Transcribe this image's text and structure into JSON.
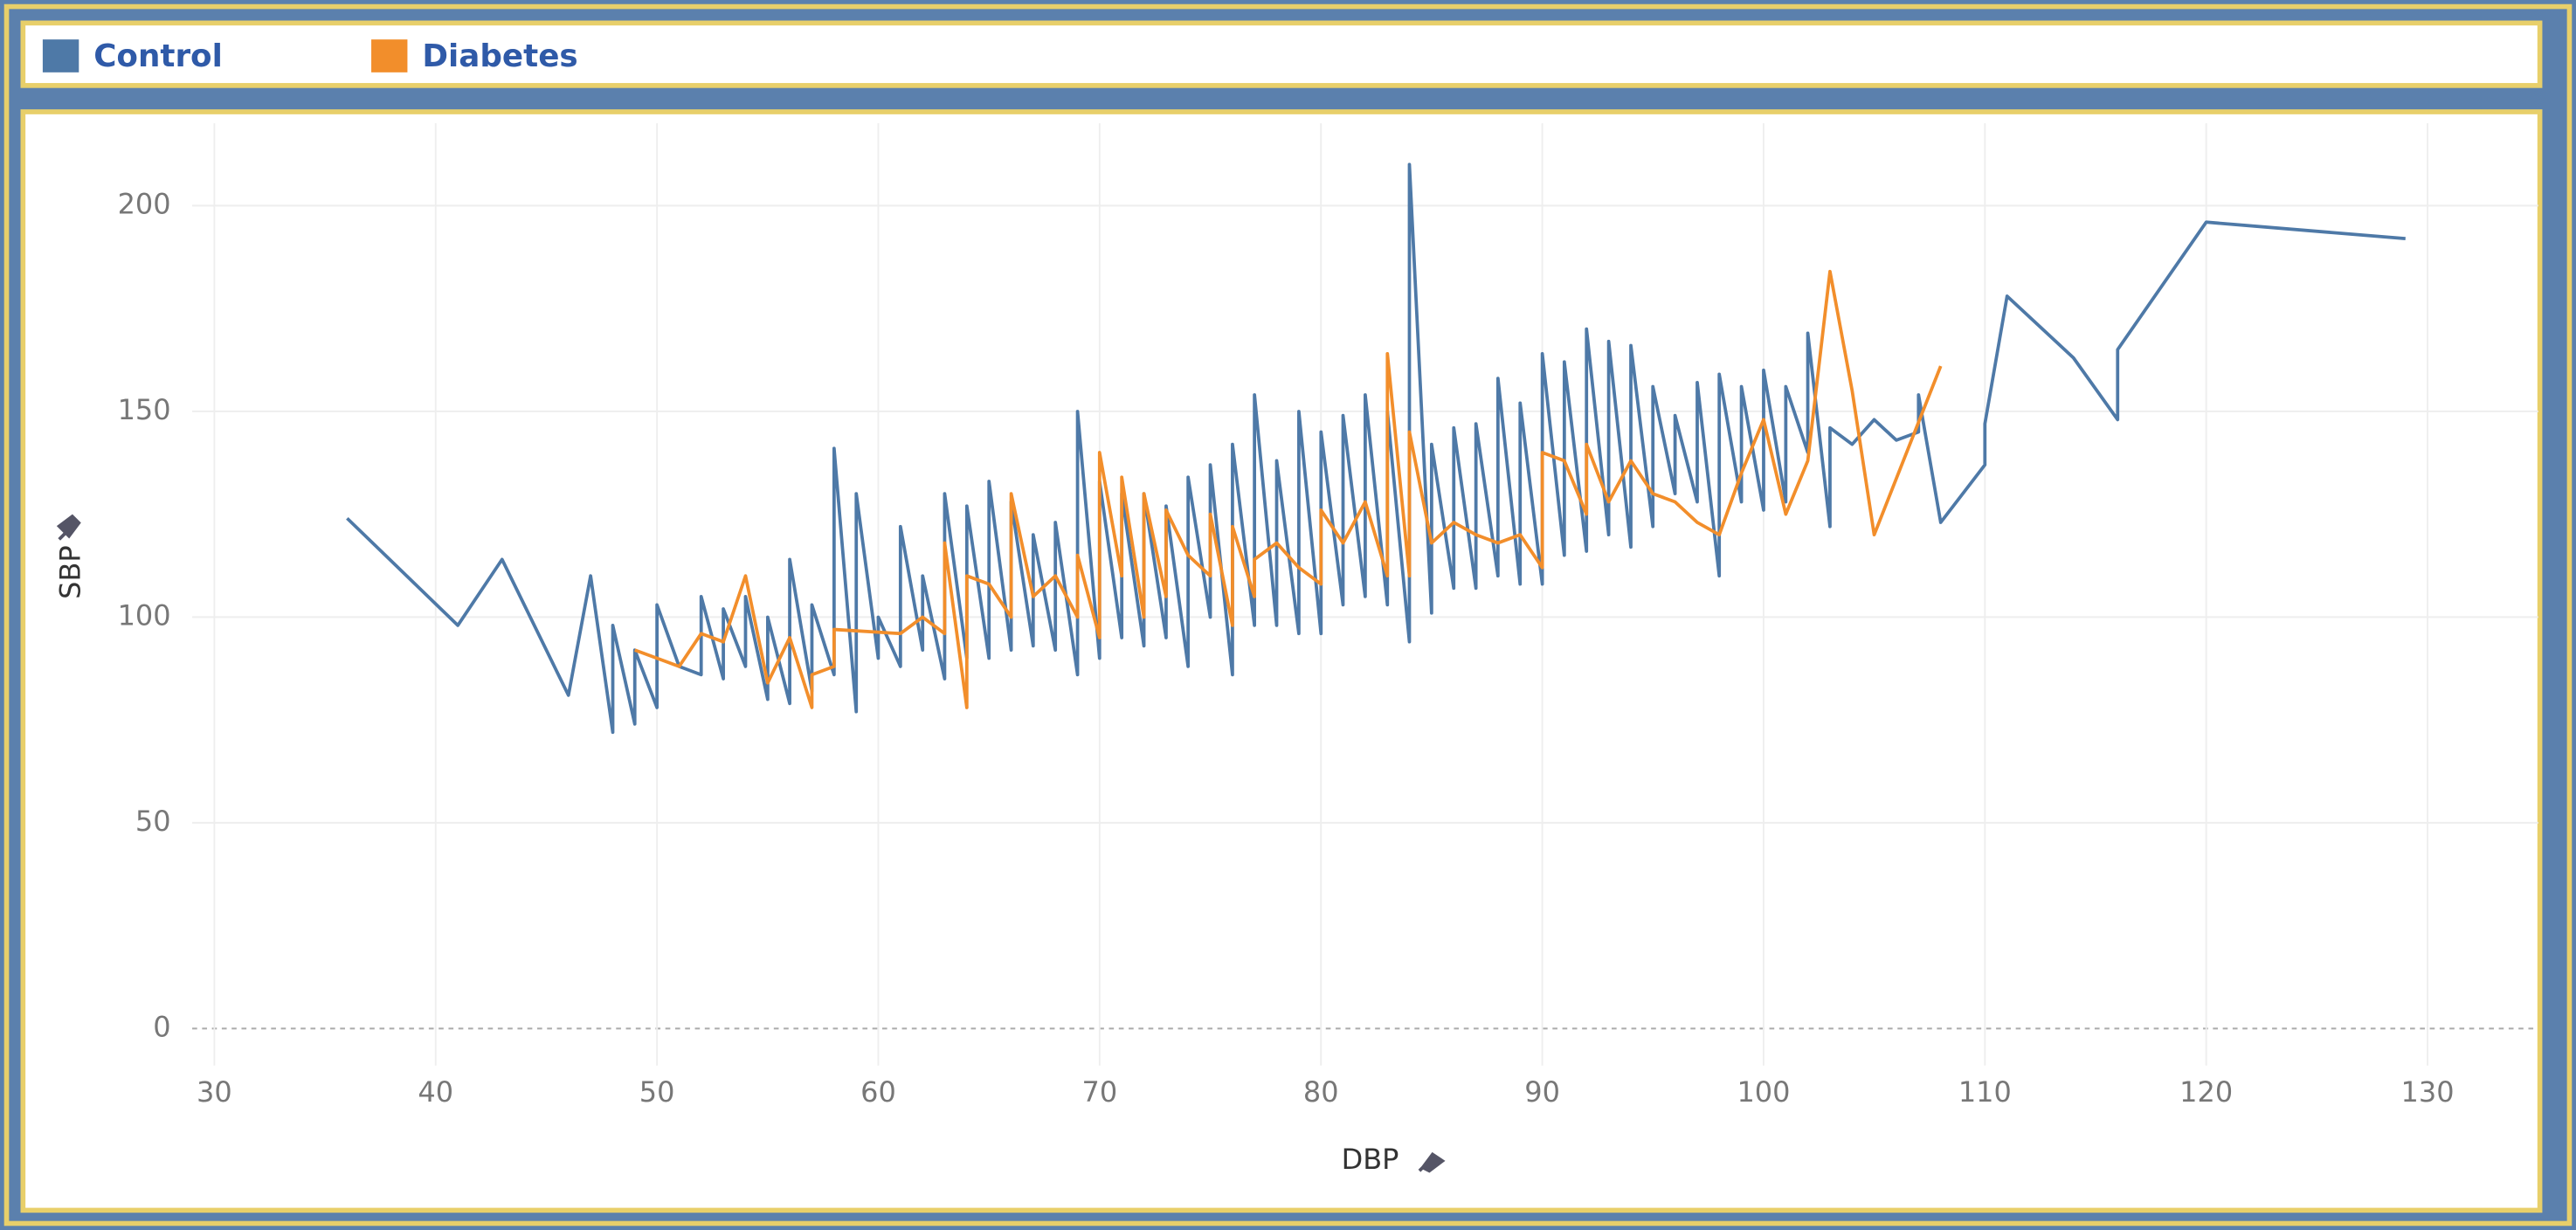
{
  "chart_data": {
    "type": "line",
    "xlabel": "DBP",
    "ylabel": "SBP",
    "xlim": [
      29,
      135
    ],
    "ylim": [
      -9,
      220
    ],
    "xticks": [
      30,
      40,
      50,
      60,
      70,
      80,
      90,
      100,
      110,
      120,
      130
    ],
    "yticks": [
      0,
      50,
      100,
      150,
      200
    ],
    "grid": true,
    "series": [
      {
        "name": "Control",
        "color": "#4e79a7",
        "x": [
          36,
          41,
          43,
          46,
          47,
          48,
          48,
          49,
          49,
          50,
          50,
          51,
          52,
          52,
          53,
          53,
          54,
          54,
          55,
          55,
          56,
          56,
          57,
          57,
          58,
          58,
          59,
          59,
          60,
          60,
          61,
          61,
          62,
          62,
          63,
          63,
          64,
          64,
          65,
          65,
          66,
          66,
          67,
          67,
          68,
          68,
          69,
          69,
          70,
          70,
          71,
          71,
          72,
          72,
          73,
          73,
          74,
          74,
          75,
          75,
          76,
          76,
          77,
          77,
          78,
          78,
          79,
          79,
          80,
          80,
          81,
          81,
          82,
          82,
          83,
          83,
          84,
          84,
          85,
          85,
          86,
          86,
          87,
          87,
          88,
          88,
          89,
          89,
          90,
          90,
          91,
          91,
          92,
          92,
          93,
          93,
          94,
          94,
          95,
          95,
          96,
          96,
          97,
          97,
          98,
          98,
          99,
          99,
          100,
          100,
          101,
          101,
          102,
          102,
          103,
          103,
          104,
          105,
          106,
          107,
          107,
          108,
          110,
          110,
          111,
          114,
          116,
          116,
          120,
          129
        ],
        "values": [
          124,
          98,
          114,
          81,
          110,
          72,
          98,
          74,
          92,
          78,
          103,
          88,
          86,
          105,
          85,
          102,
          88,
          105,
          80,
          100,
          79,
          114,
          82,
          103,
          86,
          141,
          77,
          130,
          90,
          100,
          88,
          122,
          92,
          110,
          85,
          130,
          90,
          127,
          90,
          133,
          92,
          128,
          93,
          120,
          92,
          123,
          86,
          150,
          90,
          133,
          95,
          130,
          93,
          130,
          95,
          127,
          88,
          134,
          100,
          137,
          86,
          142,
          98,
          154,
          98,
          138,
          96,
          150,
          96,
          145,
          103,
          149,
          105,
          154,
          103,
          150,
          94,
          210,
          101,
          142,
          107,
          146,
          107,
          147,
          110,
          158,
          108,
          152,
          108,
          164,
          115,
          162,
          116,
          170,
          120,
          167,
          117,
          166,
          122,
          156,
          130,
          149,
          128,
          157,
          110,
          159,
          128,
          156,
          126,
          160,
          128,
          156,
          140,
          169,
          122,
          146,
          142,
          148,
          143,
          145,
          154,
          123,
          137,
          147,
          178,
          163,
          148,
          165,
          196,
          192
        ]
      },
      {
        "name": "Diabetes",
        "color": "#f28e2b",
        "x": [
          49,
          51,
          52,
          53,
          54,
          55,
          56,
          57,
          57,
          58,
          58,
          61,
          62,
          63,
          63,
          64,
          64,
          65,
          66,
          66,
          67,
          68,
          69,
          69,
          70,
          70,
          71,
          71,
          72,
          72,
          73,
          73,
          74,
          75,
          75,
          76,
          76,
          77,
          77,
          78,
          79,
          80,
          80,
          81,
          82,
          83,
          83,
          84,
          84,
          85,
          86,
          87,
          88,
          89,
          90,
          90,
          91,
          92,
          92,
          93,
          94,
          95,
          96,
          97,
          98,
          99,
          100,
          101,
          102,
          103,
          104,
          105,
          108
        ],
        "values": [
          92,
          88,
          96,
          94,
          110,
          84,
          95,
          78,
          86,
          88,
          97,
          96,
          100,
          96,
          118,
          78,
          110,
          108,
          100,
          130,
          105,
          110,
          100,
          115,
          95,
          140,
          110,
          134,
          100,
          130,
          105,
          126,
          115,
          110,
          125,
          98,
          122,
          105,
          114,
          118,
          112,
          108,
          126,
          118,
          128,
          110,
          164,
          110,
          145,
          118,
          123,
          120,
          118,
          120,
          112,
          140,
          138,
          125,
          142,
          128,
          138,
          130,
          128,
          123,
          120,
          135,
          148,
          125,
          138,
          184,
          155,
          120,
          161
        ]
      }
    ]
  }
}
